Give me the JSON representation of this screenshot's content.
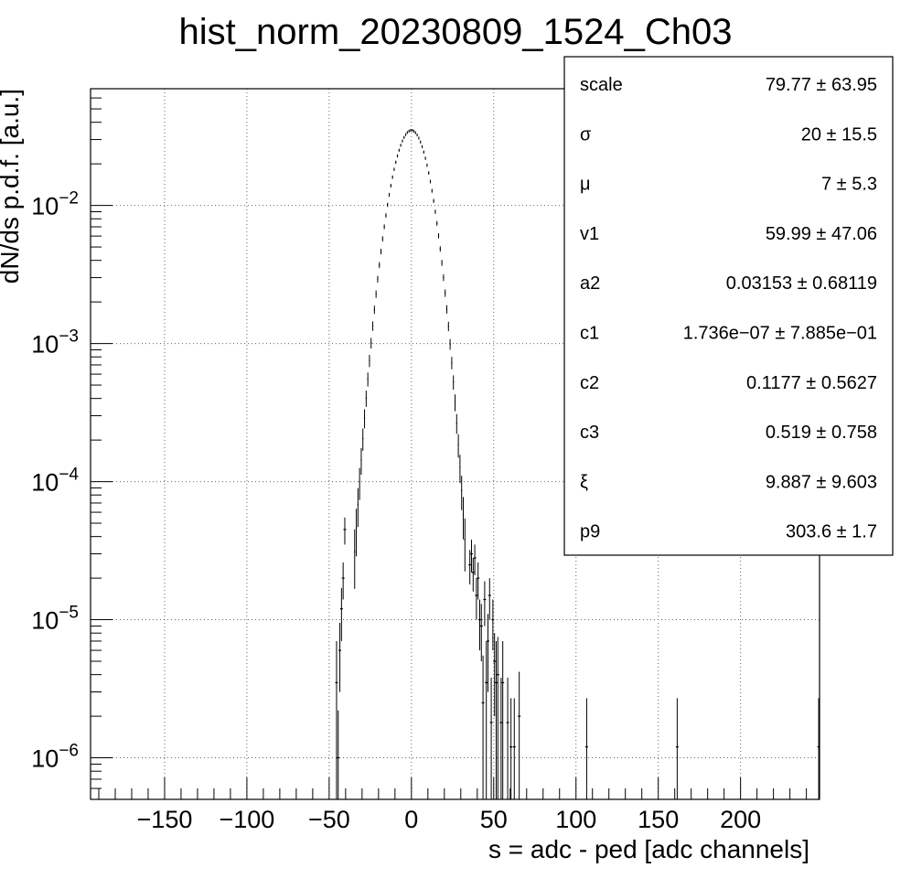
{
  "chart_data": {
    "type": "scatter",
    "title": "hist_norm_20230809_1524_Ch03",
    "xlabel": "s = adc - ped [adc channels]",
    "ylabel": "dN/ds p.d.f. [a.u.]",
    "xlim": [
      -195,
      248
    ],
    "ylim": [
      5e-07,
      0.07
    ],
    "log_y": true,
    "grid": true,
    "x_ticks": [
      -150,
      -100,
      -50,
      0,
      50,
      100,
      150,
      200
    ],
    "x_tick_labels": [
      "−150",
      "−100",
      "−50",
      "0",
      "50",
      "100",
      "150",
      "200"
    ],
    "y_ticks": [
      1e-06,
      1e-05,
      0.0001,
      0.001,
      0.01
    ],
    "y_tick_labels": [
      {
        "base": "10",
        "exp": "−6"
      },
      {
        "base": "10",
        "exp": "−5"
      },
      {
        "base": "10",
        "exp": "−4"
      },
      {
        "base": "10",
        "exp": "−3"
      },
      {
        "base": "10",
        "exp": "−2"
      }
    ],
    "peak": {
      "x": 0,
      "y": 0.035
    },
    "sparse_points": [
      {
        "x": -45.5,
        "y": 3.5e-06,
        "err_lo": 3.3e-06,
        "err_hi": 3.5e-06
      },
      {
        "x": -44.5,
        "y": 1e-06,
        "err_lo": 9e-07,
        "err_hi": 1.2e-06
      },
      {
        "x": -43.5,
        "y": 6e-06,
        "err_lo": 3e-06,
        "err_hi": 3.5e-06
      },
      {
        "x": -42.5,
        "y": 1.2e-05,
        "err_lo": 5e-06,
        "err_hi": 5e-06
      },
      {
        "x": -41.5,
        "y": 2e-05,
        "err_lo": 6e-06,
        "err_hi": 6e-06
      },
      {
        "x": -40.5,
        "y": 4.5e-05,
        "err_lo": 1e-05,
        "err_hi": 1e-05
      },
      {
        "x": 35.5,
        "y": 2.5e-05,
        "err_lo": 7e-06,
        "err_hi": 7e-06
      },
      {
        "x": 36.5,
        "y": 3e-05,
        "err_lo": 8e-06,
        "err_hi": 8e-06
      },
      {
        "x": 37.5,
        "y": 2.2e-05,
        "err_lo": 6e-06,
        "err_hi": 6e-06
      },
      {
        "x": 38.5,
        "y": 2.8e-05,
        "err_lo": 7e-06,
        "err_hi": 7e-06
      },
      {
        "x": 39.5,
        "y": 1.5e-05,
        "err_lo": 5e-06,
        "err_hi": 5e-06
      },
      {
        "x": 40.5,
        "y": 2e-05,
        "err_lo": 6e-06,
        "err_hi": 6e-06
      },
      {
        "x": 41.5,
        "y": 1e-05,
        "err_lo": 4e-06,
        "err_hi": 4e-06
      },
      {
        "x": 42.5,
        "y": 9e-06,
        "err_lo": 4e-06,
        "err_hi": 4e-06
      },
      {
        "x": 43.5,
        "y": 2.5e-06,
        "err_lo": 2.3e-06,
        "err_hi": 3e-06
      },
      {
        "x": 44.5,
        "y": 1.4e-05,
        "err_lo": 5e-06,
        "err_hi": 5e-06
      },
      {
        "x": 45.5,
        "y": 3.5e-06,
        "err_lo": 3.3e-06,
        "err_hi": 3.5e-06
      },
      {
        "x": 46.5,
        "y": 7e-06,
        "err_lo": 4e-06,
        "err_hi": 4e-06
      },
      {
        "x": 47.5,
        "y": 1.5e-05,
        "err_lo": 5e-06,
        "err_hi": 5e-06
      },
      {
        "x": 48.5,
        "y": 1.8e-06,
        "err_lo": 1.7e-06,
        "err_hi": 2e-06
      },
      {
        "x": 49.5,
        "y": 1e-05,
        "err_lo": 4e-06,
        "err_hi": 4e-06
      },
      {
        "x": 50.5,
        "y": 5e-06,
        "err_lo": 3e-06,
        "err_hi": 3e-06
      },
      {
        "x": 51.5,
        "y": 3.5e-06,
        "err_lo": 3.3e-06,
        "err_hi": 3.5e-06
      },
      {
        "x": 52.5,
        "y": 4e-06,
        "err_lo": 3.5e-06,
        "err_hi": 3.5e-06
      },
      {
        "x": 54.5,
        "y": 1.8e-06,
        "err_lo": 1.7e-06,
        "err_hi": 2e-06
      },
      {
        "x": 55.5,
        "y": 3.5e-06,
        "err_lo": 3.3e-06,
        "err_hi": 3.5e-06
      },
      {
        "x": 58.5,
        "y": 1.8e-06,
        "err_lo": 1.7e-06,
        "err_hi": 2e-06
      },
      {
        "x": 60.5,
        "y": 1.2e-06,
        "err_lo": 1.1e-06,
        "err_hi": 1.5e-06
      },
      {
        "x": 62.5,
        "y": 1.2e-06,
        "err_lo": 1.1e-06,
        "err_hi": 1.5e-06
      },
      {
        "x": 65.5,
        "y": 2e-06,
        "err_lo": 1.9e-06,
        "err_hi": 2.2e-06
      },
      {
        "x": 106.5,
        "y": 1.2e-06,
        "err_lo": 1.1e-06,
        "err_hi": 1.5e-06
      },
      {
        "x": 161.5,
        "y": 1.2e-06,
        "err_lo": 1.1e-06,
        "err_hi": 1.5e-06
      },
      {
        "x": 247.5,
        "y": 1.2e-06,
        "err_lo": 1.1e-06,
        "err_hi": 1.5e-06
      }
    ]
  },
  "stats_box": [
    {
      "name": "scale",
      "value": "79.77 ± 63.95"
    },
    {
      "name": "σ",
      "value": "20 ± 15.5"
    },
    {
      "name": "μ",
      "value": "7 ± 5.3"
    },
    {
      "name": "v1",
      "value": "59.99 ± 47.06"
    },
    {
      "name": "a2",
      "value": "0.03153 ± 0.68119"
    },
    {
      "name": "c1",
      "value": "1.736e−07 ± 7.885e−01"
    },
    {
      "name": "c2",
      "value": "0.1177 ± 0.5627"
    },
    {
      "name": "c3",
      "value": "0.519 ± 0.758"
    },
    {
      "name": "ξ",
      "value": "9.887 ± 9.603"
    },
    {
      "name": "p9",
      "value": "303.6 ± 1.7"
    }
  ]
}
